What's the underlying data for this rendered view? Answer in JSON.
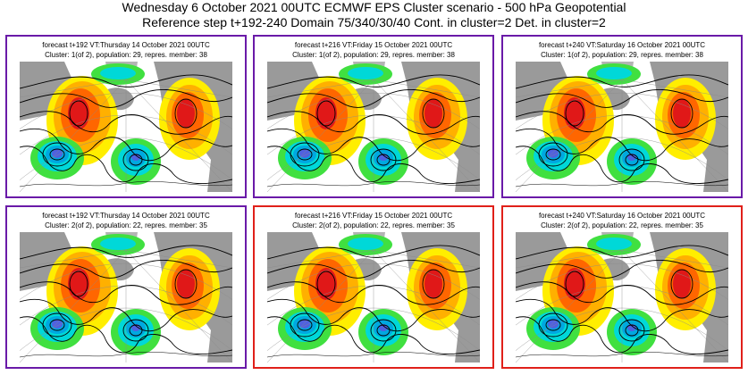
{
  "header": {
    "line1": "Wednesday 6 October 2021 00UTC ECMWF EPS Cluster scenario - 500 hPa Geopotential",
    "line2": "Reference step t+192-240 Domain 75/340/30/40 Cont. in cluster=2 Det. in cluster=2"
  },
  "colors": {
    "purple_frame": "#6a1aa8",
    "red_frame": "#e0201a"
  },
  "panels": [
    {
      "frame": "purple",
      "forecast": "forecast t+192 VT:Thursday 14 October 2021 00UTC",
      "cluster": "Cluster: 1(of 2), population: 29, repres. member: 38"
    },
    {
      "frame": "purple",
      "forecast": "forecast t+216 VT:Friday 15 October 2021 00UTC",
      "cluster": "Cluster: 1(of 2), population: 29, repres. member: 38"
    },
    {
      "frame": "purple",
      "forecast": "forecast t+240 VT:Saturday 16 October 2021 00UTC",
      "cluster": "Cluster: 1(of 2), population: 29, repres. member: 38"
    },
    {
      "frame": "purple",
      "forecast": "forecast t+192 VT:Thursday 14 October 2021 00UTC",
      "cluster": "Cluster: 2(of 2), population: 22, repres. member: 35"
    },
    {
      "frame": "red",
      "forecast": "forecast t+216 VT:Friday 15 October 2021 00UTC",
      "cluster": "Cluster: 2(of 2), population: 22, repres. member: 35"
    },
    {
      "frame": "red",
      "forecast": "forecast t+240 VT:Saturday 16 October 2021 00UTC",
      "cluster": "Cluster: 2(of 2), population: 22, repres. member: 35"
    }
  ]
}
